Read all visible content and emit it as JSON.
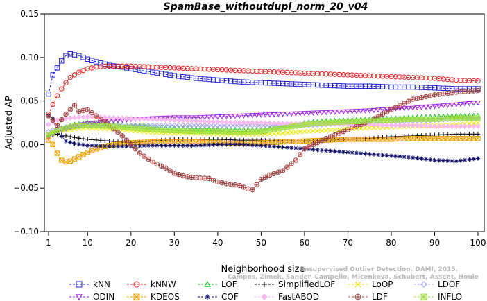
{
  "chart_data": {
    "type": "line",
    "title": "SpamBase_withoutdupl_norm_20_v04",
    "xlabel": "Neighborhood size",
    "ylabel": "Adjusted AP",
    "xlim": [
      1,
      100
    ],
    "ylim": [
      -0.1,
      0.15
    ],
    "x_ticks": [
      "1",
      "10",
      "20",
      "30",
      "40",
      "50",
      "60",
      "70",
      "80",
      "90",
      "100"
    ],
    "y_ticks": [
      "−0.10",
      "−0.05",
      "0.00",
      "0.05",
      "0.10",
      "0.15"
    ],
    "grid": false,
    "legend_position": "bottom",
    "watermark": [
      "Unsupervised Outlier Detection. DAMI, 2015.",
      "Campos, Zimek, Sander, Campello, Micenkova, Schubert, Assent, Houle"
    ],
    "series": [
      {
        "name": "kNN",
        "color": "#1f1fd0",
        "marker": "square",
        "x": [
          1,
          2,
          3,
          4,
          5,
          6,
          8,
          10,
          12,
          15,
          18,
          20,
          25,
          30,
          35,
          40,
          45,
          50,
          55,
          60,
          65,
          70,
          75,
          80,
          85,
          90,
          95,
          100
        ],
        "y": [
          0.058,
          0.08,
          0.088,
          0.096,
          0.102,
          0.104,
          0.102,
          0.098,
          0.095,
          0.091,
          0.089,
          0.087,
          0.083,
          0.079,
          0.076,
          0.074,
          0.072,
          0.071,
          0.07,
          0.069,
          0.068,
          0.067,
          0.067,
          0.066,
          0.066,
          0.065,
          0.064,
          0.064
        ]
      },
      {
        "name": "kNNW",
        "color": "#e0201f",
        "marker": "circle",
        "x": [
          1,
          2,
          3,
          4,
          5,
          6,
          8,
          10,
          12,
          14,
          16,
          18,
          20,
          25,
          30,
          35,
          40,
          45,
          50,
          55,
          60,
          65,
          70,
          75,
          80,
          85,
          90,
          95,
          100
        ],
        "y": [
          0.035,
          0.046,
          0.056,
          0.064,
          0.071,
          0.077,
          0.083,
          0.087,
          0.089,
          0.09,
          0.09,
          0.09,
          0.09,
          0.089,
          0.088,
          0.087,
          0.086,
          0.085,
          0.084,
          0.083,
          0.082,
          0.081,
          0.08,
          0.079,
          0.078,
          0.077,
          0.076,
          0.074,
          0.073
        ]
      },
      {
        "name": "LOF",
        "color": "#20c020",
        "marker": "triangle-up",
        "x": [
          1,
          2,
          3,
          5,
          7,
          10,
          15,
          20,
          25,
          30,
          35,
          40,
          45,
          50,
          55,
          60,
          65,
          70,
          75,
          80,
          85,
          90,
          95,
          100
        ],
        "y": [
          0.011,
          0.013,
          0.016,
          0.02,
          0.023,
          0.025,
          0.024,
          0.022,
          0.02,
          0.019,
          0.018,
          0.018,
          0.017,
          0.017,
          0.021,
          0.025,
          0.027,
          0.028,
          0.029,
          0.03,
          0.031,
          0.032,
          0.033,
          0.033
        ]
      },
      {
        "name": "SimplifiedLOF",
        "color": "#000000",
        "marker": "plus",
        "x": [
          1,
          2,
          3,
          5,
          7,
          10,
          15,
          20,
          25,
          30,
          35,
          40,
          45,
          50,
          55,
          60,
          65,
          70,
          75,
          80,
          85,
          90,
          95,
          100
        ],
        "y": [
          0.01,
          0.011,
          0.012,
          0.01,
          0.008,
          0.006,
          0.004,
          0.002,
          0.004,
          0.006,
          0.006,
          0.006,
          0.005,
          0.005,
          0.004,
          0.004,
          0.005,
          0.006,
          0.007,
          0.009,
          0.01,
          0.011,
          0.012,
          0.012
        ]
      },
      {
        "name": "LoOP",
        "color": "#e8e800",
        "marker": "x",
        "x": [
          1,
          2,
          3,
          5,
          7,
          10,
          15,
          20,
          25,
          30,
          35,
          40,
          45,
          50,
          55,
          60,
          65,
          70,
          75,
          80,
          85,
          90,
          95,
          100
        ],
        "y": [
          0.012,
          0.014,
          0.015,
          0.017,
          0.018,
          0.019,
          0.018,
          0.016,
          0.014,
          0.013,
          0.013,
          0.012,
          0.012,
          0.012,
          0.013,
          0.015,
          0.016,
          0.018,
          0.019,
          0.02,
          0.021,
          0.022,
          0.023,
          0.025
        ]
      },
      {
        "name": "LDOF",
        "color": "#a0a0f0",
        "marker": "diamond",
        "x": [
          1,
          2,
          3,
          5,
          7,
          10,
          15,
          20,
          25,
          30,
          35,
          40,
          45,
          50,
          55,
          60,
          65,
          70,
          75,
          80,
          85,
          90,
          95,
          100
        ],
        "y": [
          0.015,
          0.017,
          0.018,
          0.02,
          0.021,
          0.022,
          0.022,
          0.022,
          0.022,
          0.022,
          0.022,
          0.022,
          0.022,
          0.022,
          0.022,
          0.022,
          0.023,
          0.024,
          0.025,
          0.026,
          0.027,
          0.028,
          0.029,
          0.03
        ]
      },
      {
        "name": "ODIN",
        "color": "#a020e0",
        "marker": "triangle-down",
        "x": [
          1,
          2,
          3,
          5,
          7,
          10,
          15,
          20,
          25,
          30,
          35,
          40,
          45,
          50,
          55,
          60,
          65,
          70,
          75,
          80,
          85,
          90,
          95,
          100
        ],
        "y": [
          0.008,
          0.011,
          0.015,
          0.018,
          0.021,
          0.024,
          0.027,
          0.029,
          0.03,
          0.031,
          0.031,
          0.032,
          0.033,
          0.034,
          0.035,
          0.036,
          0.037,
          0.038,
          0.039,
          0.041,
          0.042,
          0.044,
          0.046,
          0.048
        ]
      },
      {
        "name": "KDEOS",
        "color": "#f0a000",
        "marker": "square-x",
        "x": [
          1,
          2,
          3,
          4,
          5,
          6,
          8,
          10,
          12,
          15,
          18,
          20,
          25,
          30,
          35,
          40,
          45,
          50,
          55,
          60,
          65,
          70,
          75,
          80,
          85,
          90,
          95,
          100
        ],
        "y": [
          0.005,
          0.0,
          -0.01,
          -0.018,
          -0.02,
          -0.019,
          -0.014,
          -0.009,
          -0.005,
          -0.001,
          0.001,
          0.002,
          0.003,
          0.003,
          0.003,
          0.002,
          0.001,
          0.002,
          0.003,
          0.004,
          0.005,
          0.006,
          0.006,
          0.006,
          0.007,
          0.007,
          0.007,
          0.007
        ]
      },
      {
        "name": "COF",
        "color": "#10106a",
        "marker": "asterisk",
        "x": [
          1,
          2,
          3,
          5,
          7,
          10,
          15,
          20,
          25,
          30,
          35,
          40,
          45,
          50,
          55,
          60,
          65,
          70,
          75,
          80,
          85,
          90,
          95,
          100
        ],
        "y": [
          0.033,
          0.03,
          0.015,
          0.004,
          0.001,
          -0.001,
          -0.002,
          -0.002,
          -0.001,
          -0.001,
          -0.001,
          0.0,
          0.0,
          -0.001,
          -0.003,
          -0.005,
          -0.007,
          -0.009,
          -0.011,
          -0.013,
          -0.015,
          -0.018,
          -0.019,
          -0.016
        ]
      },
      {
        "name": "FastABOD",
        "color": "#f8b8f0",
        "marker": "diamond-fill",
        "x": [
          1,
          2,
          3,
          5,
          7,
          10,
          15,
          20,
          25,
          30,
          35,
          40,
          45,
          50,
          55,
          60,
          65,
          70,
          75,
          80,
          85,
          90,
          95,
          100
        ],
        "y": [
          0.023,
          0.026,
          0.028,
          0.03,
          0.031,
          0.032,
          0.031,
          0.03,
          0.029,
          0.028,
          0.027,
          0.026,
          0.025,
          0.025,
          0.024,
          0.024,
          0.024,
          0.023,
          0.023,
          0.022,
          0.022,
          0.021,
          0.021,
          0.021
        ]
      },
      {
        "name": "LDF",
        "color": "#a04040",
        "marker": "circle-plus",
        "x": [
          1,
          2,
          3,
          5,
          7,
          8,
          10,
          12,
          15,
          18,
          20,
          22,
          25,
          28,
          30,
          33,
          35,
          38,
          40,
          42,
          45,
          47,
          48,
          50,
          52,
          55,
          58,
          60,
          65,
          70,
          75,
          80,
          85,
          90,
          95,
          100
        ],
        "y": [
          0.033,
          0.028,
          0.022,
          0.035,
          0.045,
          0.038,
          0.04,
          0.033,
          0.022,
          0.01,
          0.0,
          -0.01,
          -0.02,
          -0.027,
          -0.033,
          -0.037,
          -0.038,
          -0.039,
          -0.043,
          -0.045,
          -0.047,
          -0.051,
          -0.052,
          -0.04,
          -0.035,
          -0.03,
          -0.018,
          -0.005,
          0.007,
          0.017,
          0.027,
          0.04,
          0.052,
          0.057,
          0.06,
          0.062
        ]
      },
      {
        "name": "INFLO",
        "color": "#a0e040",
        "marker": "square-star",
        "x": [
          1,
          2,
          3,
          5,
          7,
          10,
          15,
          20,
          25,
          30,
          35,
          40,
          45,
          50,
          55,
          60,
          65,
          70,
          75,
          80,
          85,
          90,
          95,
          100
        ],
        "y": [
          0.011,
          0.013,
          0.016,
          0.019,
          0.021,
          0.022,
          0.021,
          0.019,
          0.017,
          0.016,
          0.015,
          0.015,
          0.014,
          0.015,
          0.019,
          0.023,
          0.025,
          0.026,
          0.027,
          0.028,
          0.029,
          0.029,
          0.03,
          0.03
        ]
      }
    ]
  }
}
